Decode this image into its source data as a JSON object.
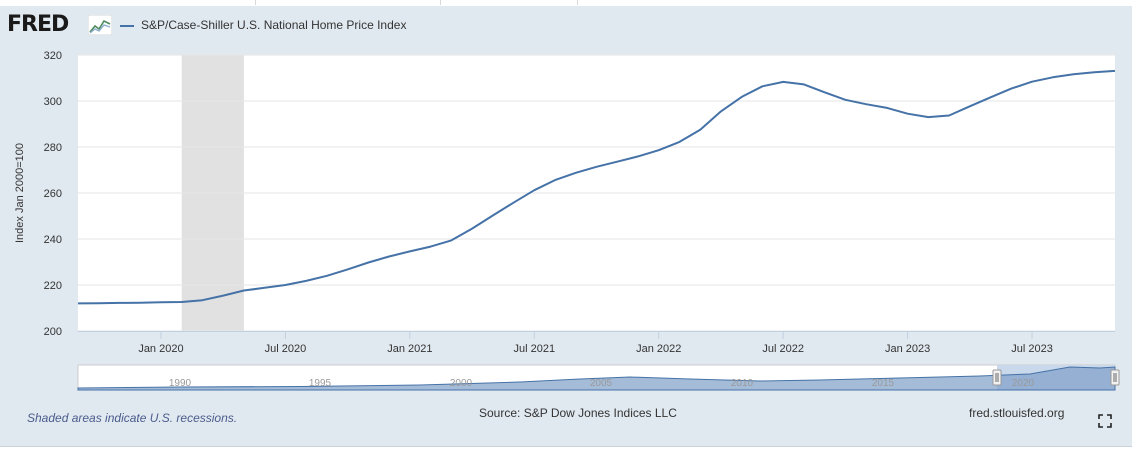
{
  "header": {
    "logo_text": "FRED",
    "logo_icon": "fred-chart-icon",
    "legend_label": "S&P/Case-Shiller U.S. National Home Price Index"
  },
  "chart_data": {
    "type": "line",
    "title": "",
    "xlabel": "",
    "ylabel": "Index Jan 2000=100",
    "ylim": [
      200,
      320
    ],
    "yticks": [
      200,
      220,
      240,
      260,
      280,
      300,
      320
    ],
    "xlim": [
      "2019-09",
      "2023-11"
    ],
    "xticks": [
      {
        "label": "Jan 2020",
        "date": "2020-01"
      },
      {
        "label": "Jul 2020",
        "date": "2020-07"
      },
      {
        "label": "Jan 2021",
        "date": "2021-01"
      },
      {
        "label": "Jul 2021",
        "date": "2021-07"
      },
      {
        "label": "Jan 2022",
        "date": "2022-01"
      },
      {
        "label": "Jul 2022",
        "date": "2022-07"
      },
      {
        "label": "Jan 2023",
        "date": "2023-01"
      },
      {
        "label": "Jul 2023",
        "date": "2023-07"
      }
    ],
    "grid": true,
    "recessions": [
      {
        "start": "2020-02",
        "end": "2020-04"
      }
    ],
    "series": [
      {
        "name": "S&P/Case-Shiller U.S. National Home Price Index",
        "color": "#4572a7",
        "x": [
          "2019-09",
          "2019-10",
          "2019-11",
          "2019-12",
          "2020-01",
          "2020-02",
          "2020-03",
          "2020-04",
          "2020-05",
          "2020-06",
          "2020-07",
          "2020-08",
          "2020-09",
          "2020-10",
          "2020-11",
          "2020-12",
          "2021-01",
          "2021-02",
          "2021-03",
          "2021-04",
          "2021-05",
          "2021-06",
          "2021-07",
          "2021-08",
          "2021-09",
          "2021-10",
          "2021-11",
          "2021-12",
          "2022-01",
          "2022-02",
          "2022-03",
          "2022-04",
          "2022-05",
          "2022-06",
          "2022-07",
          "2022-08",
          "2022-09",
          "2022-10",
          "2022-11",
          "2022-12",
          "2023-01",
          "2023-02",
          "2023-03",
          "2023-04",
          "2023-05",
          "2023-06",
          "2023-07",
          "2023-08",
          "2023-09",
          "2023-10",
          "2023-11"
        ],
        "values": [
          212.0,
          212.1,
          212.2,
          212.3,
          212.5,
          212.6,
          213.4,
          215.4,
          217.6,
          218.8,
          220.0,
          221.8,
          224.0,
          226.8,
          229.8,
          232.4,
          234.6,
          236.7,
          239.4,
          244.5,
          250.2,
          255.8,
          261.2,
          265.6,
          268.8,
          271.4,
          273.6,
          275.9,
          278.6,
          282.2,
          287.5,
          295.5,
          301.8,
          306.4,
          308.3,
          307.2,
          303.8,
          300.5,
          298.6,
          297.0,
          294.5,
          293.0,
          293.7,
          297.7,
          301.6,
          305.4,
          308.4,
          310.3,
          311.6,
          312.5,
          313.1
        ]
      }
    ]
  },
  "navigator": {
    "tick_labels": [
      "1990",
      "1995",
      "2000",
      "2005",
      "2010",
      "2015",
      "2020"
    ]
  },
  "footer": {
    "recession_note": "Shaded areas indicate U.S. recessions.",
    "source": "Source: S&P Dow Jones Indices LLC",
    "site": "fred.stlouisfed.org",
    "fullscreen_icon": "fullscreen-icon"
  }
}
